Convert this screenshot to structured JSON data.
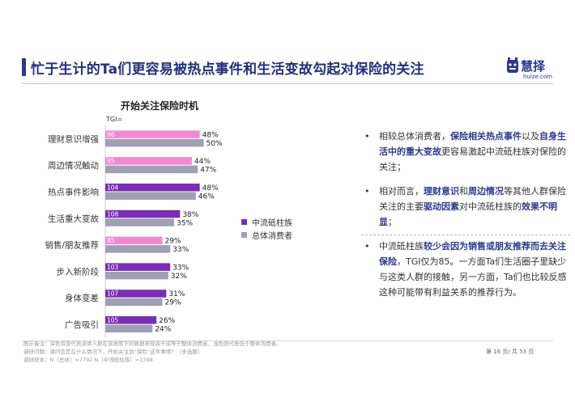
{
  "header": {
    "title": "忙于生计的Ta们更容易被热点事件和生活变故勾起对保险的关注",
    "brand_name": "慧择",
    "brand_url": "huize.com"
  },
  "colors": {
    "primary": "#7a2db5",
    "secondary": "#a09fb3",
    "low_tgi": "#f08ad0",
    "accent": "#2a3a8c"
  },
  "chart_data": {
    "type": "bar",
    "orientation": "horizontal",
    "title": "开始关注保险时机",
    "tgi_label": "TGI=",
    "categories": [
      "理财意识增强",
      "周边情况触动",
      "热点事件影响",
      "生活重大变故",
      "销售/朋友推荐",
      "步入新阶段",
      "身体变差",
      "广告吸引"
    ],
    "series": [
      {
        "name": "中流砥柱族",
        "values": [
          48,
          44,
          48,
          38,
          29,
          33,
          31,
          26
        ],
        "tgi": [
          96,
          95,
          104,
          108,
          85,
          103,
          107,
          105
        ]
      },
      {
        "name": "总体消费者",
        "values": [
          50,
          47,
          46,
          35,
          33,
          32,
          29,
          24
        ]
      }
    ],
    "value_suffix": "%",
    "xlim": [
      0,
      60
    ],
    "grid": false,
    "legend_position": "right"
  },
  "bullets": [
    {
      "parts": [
        {
          "t": "相较总体消费者，",
          "h": false
        },
        {
          "t": "保险相关热点事件",
          "h": true
        },
        {
          "t": "以及",
          "h": false
        },
        {
          "t": "自身生活中的重大变故",
          "h": true
        },
        {
          "t": "更容易激起中流砥柱族对保险的关注；",
          "h": false
        }
      ]
    },
    {
      "parts": [
        {
          "t": "相对而言，",
          "h": false
        },
        {
          "t": "理财意识",
          "h": true
        },
        {
          "t": "和",
          "h": false
        },
        {
          "t": "周边情况",
          "h": true
        },
        {
          "t": "等其他人群保险关注的主要",
          "h": false
        },
        {
          "t": "驱动因素",
          "h": true
        },
        {
          "t": "对中流砥柱族的",
          "h": false
        },
        {
          "t": "效果不明显",
          "h": true
        },
        {
          "t": "；",
          "h": false
        }
      ]
    },
    {
      "parts": [
        {
          "t": "中流砥柱族",
          "h": false
        },
        {
          "t": "较少会因为销售或朋友推荐而去关注保险",
          "h": true
        },
        {
          "t": "，TGI仅为85。一方面Ta们生活圈子里缺少与这类人群的接触，另一方面，Ta们也比较反感这种可能带有利益关系的推荐行为。",
          "h": false
        }
      ]
    }
  ],
  "bullet_marker": "•",
  "footer": {
    "note": "图示备注：深色背景代表该类人群在该维度下的数据表现高于或等于整体消费者，浅色则代表低于整体消费者。",
    "question": "调研问题：请问您是在什么情况下，开始关注到“保险”这件事情？（多选题）",
    "sample": "调研样本：N（总体）=7792    N（中流砥柱族）=1398",
    "page": "第 16 页/ 共 53 页"
  }
}
